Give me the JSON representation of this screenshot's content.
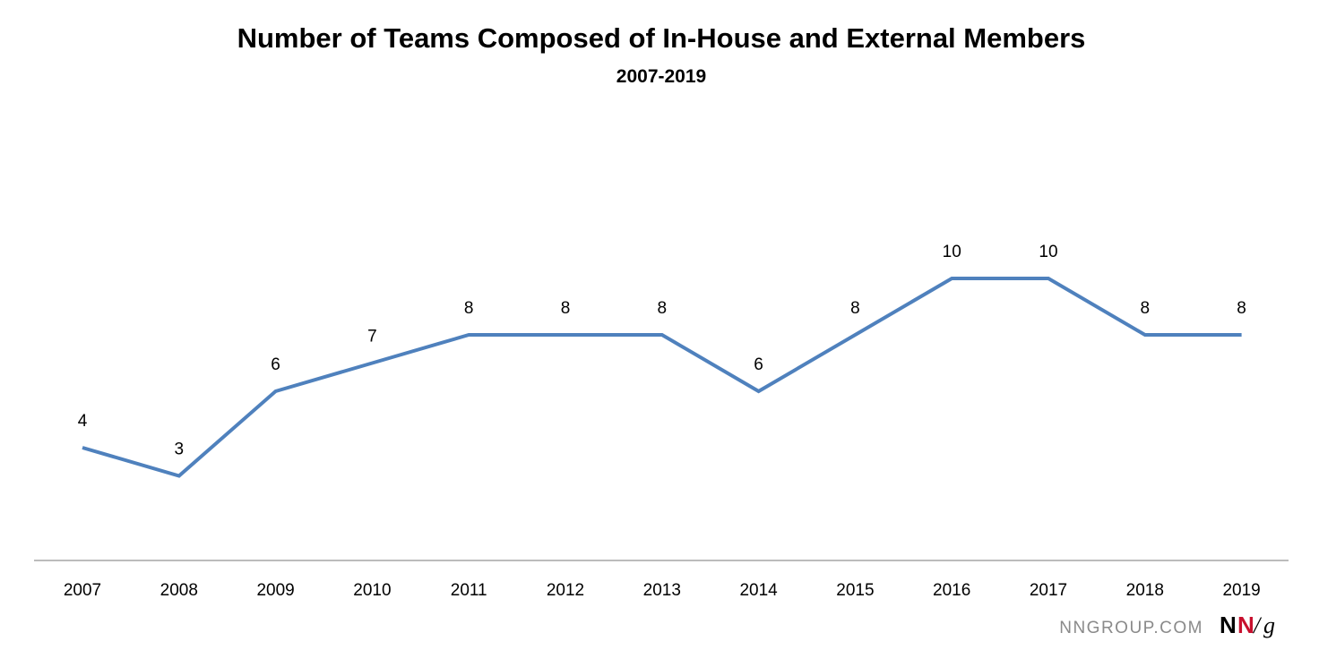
{
  "chart_data": {
    "type": "line",
    "title": "Number of Teams Composed of In-House and External Members",
    "subtitle": "2007-2019",
    "xlabel": "",
    "ylabel": "",
    "categories": [
      "2007",
      "2008",
      "2009",
      "2010",
      "2011",
      "2012",
      "2013",
      "2014",
      "2015",
      "2016",
      "2017",
      "2018",
      "2019"
    ],
    "series": [
      {
        "values": [
          4,
          3,
          6,
          7,
          8,
          8,
          8,
          6,
          8,
          10,
          10,
          8,
          8
        ],
        "color": "#4f81bd"
      }
    ],
    "data_labels": [
      "4",
      "3",
      "6",
      "7",
      "8",
      "8",
      "8",
      "6",
      "8",
      "10",
      "10",
      "8",
      "8"
    ],
    "ylim": [
      0,
      14
    ],
    "grid": false,
    "legend": "none"
  },
  "branding": {
    "site": "NNGROUP.COM",
    "logo_n1": "N",
    "logo_n2": "N",
    "logo_slash": "/",
    "logo_g": "g",
    "colors": {
      "text_gray": "#8a8a8a",
      "logo_black": "#000000",
      "logo_red": "#c8102e"
    }
  }
}
